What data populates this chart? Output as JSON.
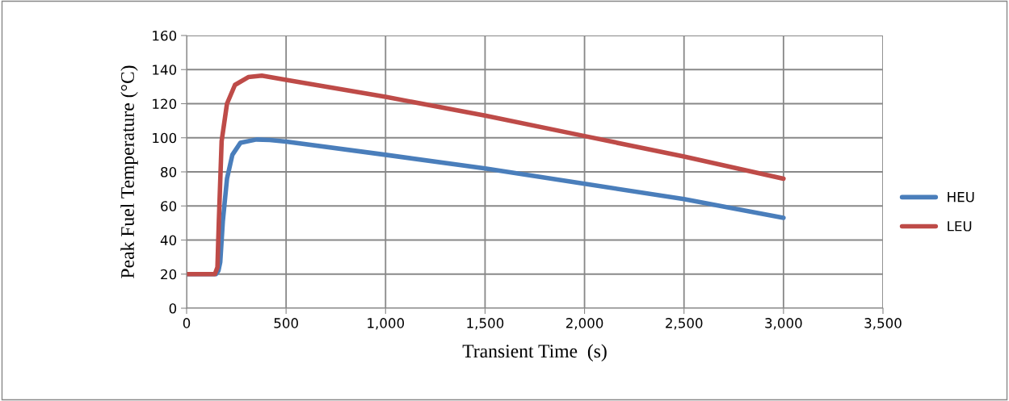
{
  "chart_data": {
    "type": "line",
    "xlabel": "Transient Time  (s)",
    "ylabel": "Peak Fuel Temperature (°C)",
    "xlim": [
      0,
      3500
    ],
    "xticks": [
      0,
      {
        "value": 500,
        "label": "500"
      },
      {
        "value": 1000,
        "label": "1,000"
      },
      {
        "value": 1500,
        "label": "1,500"
      },
      {
        "value": 2000,
        "label": "2,000"
      },
      {
        "value": 2500,
        "label": "2,500"
      },
      {
        "value": 3000,
        "label": "3,000"
      },
      {
        "value": 3500,
        "label": "3,500"
      }
    ],
    "ylim": [
      0,
      160
    ],
    "yticks": [
      0,
      20,
      40,
      60,
      80,
      100,
      120,
      140,
      160
    ],
    "grid": true,
    "legend": "right",
    "marker": "none",
    "line_style": "solid",
    "series": [
      {
        "name": "HEU",
        "color": "#4a7ebb",
        "x": [
          0,
          148,
          160,
          169,
          182,
          203,
          230,
          270,
          351,
          418,
          500,
          1000,
          1500,
          2000,
          2500,
          3000
        ],
        "values": [
          20,
          20,
          22,
          27,
          51,
          76,
          90,
          97,
          99,
          98.7,
          97.8,
          90,
          82,
          73,
          64,
          53
        ]
      },
      {
        "name": "LEU",
        "color": "#be4b48",
        "x": [
          0,
          142,
          155,
          162,
          176,
          203,
          243,
          310,
          378,
          500,
          1000,
          1500,
          2000,
          2500,
          3000
        ],
        "values": [
          20,
          20,
          24,
          51,
          98,
          120,
          131,
          135.6,
          136.4,
          134,
          124,
          113,
          101,
          89,
          76
        ]
      }
    ]
  }
}
